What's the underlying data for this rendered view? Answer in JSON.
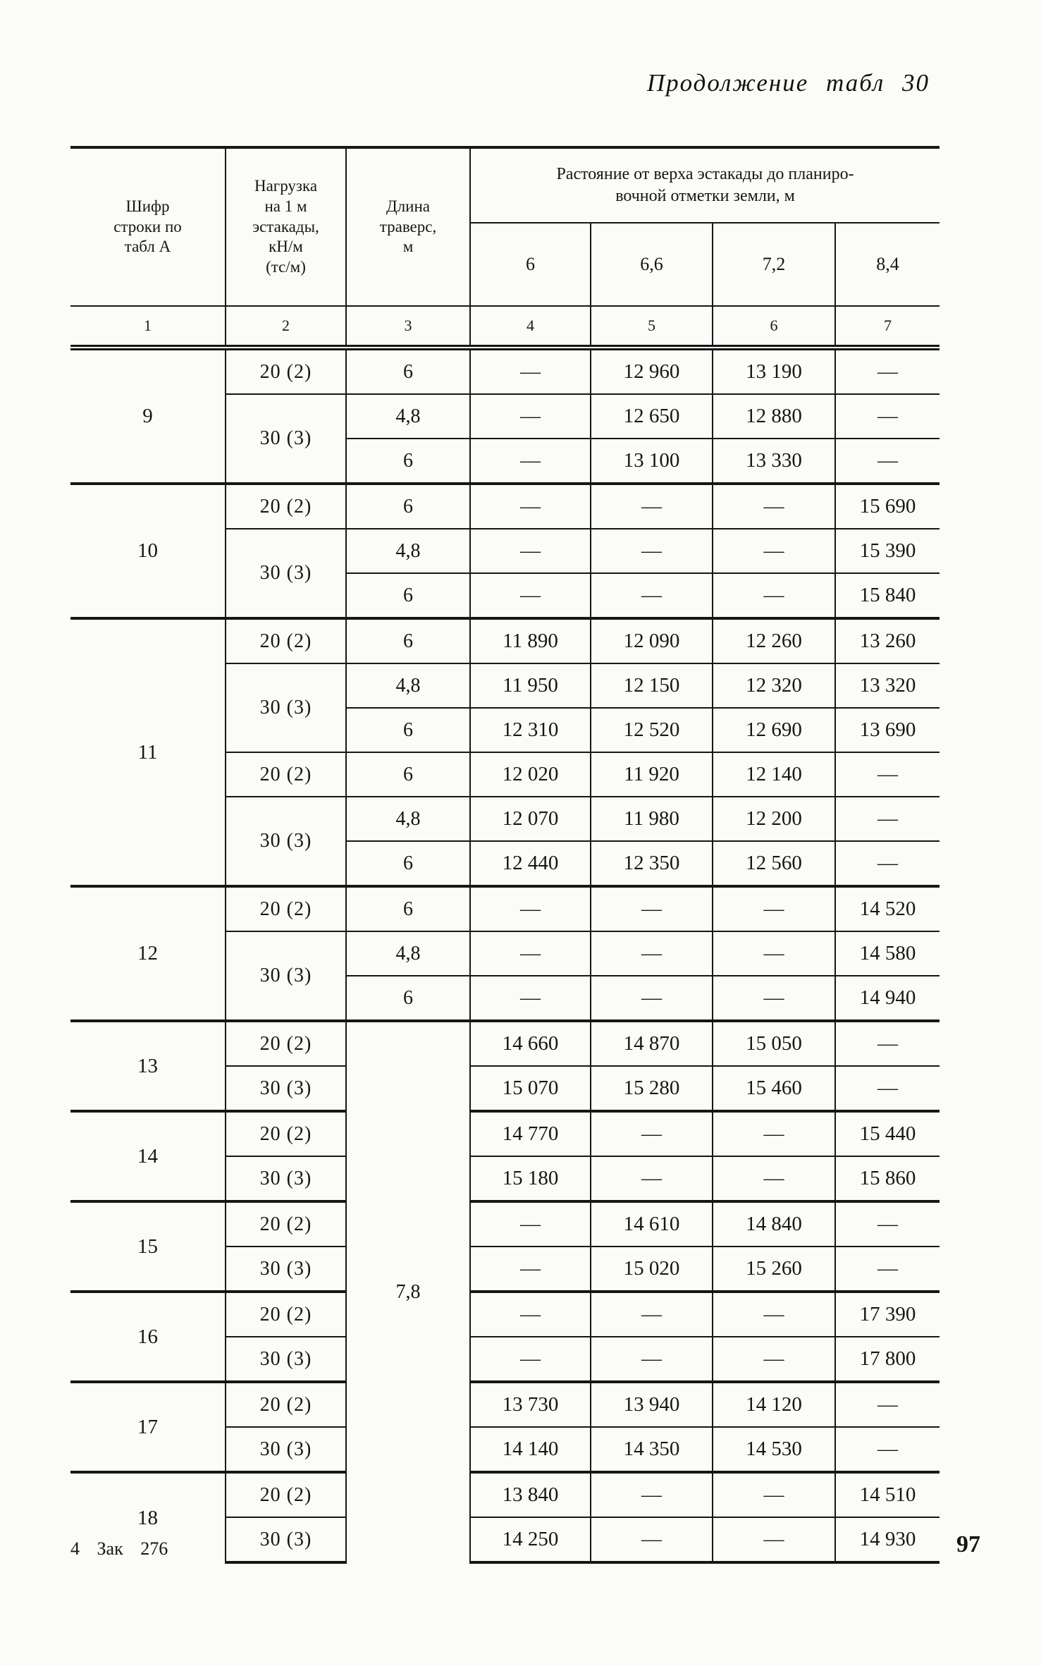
{
  "page": {
    "title": "Продолжение табл 30",
    "footer_left": "4 Зак 276",
    "page_number": "97"
  },
  "table": {
    "header": {
      "col1": "Шифр\nстроки по\nтабл  А",
      "col2": "Нагрузка\nна 1 м\nэстакады,\nкН/м\n(тс/м)",
      "col3": "Длина\nтраверс,\nм",
      "group": "Растояние от верха эстакады до планиро-\nвочной отметки земли, м",
      "subcols": [
        "6",
        "6,6",
        "7,2",
        "8,4"
      ],
      "numbering": [
        "1",
        "2",
        "3",
        "4",
        "5",
        "6",
        "7"
      ]
    },
    "lower_traverse": "7,8",
    "blocks": [
      {
        "code": "9",
        "groups": [
          {
            "load": "20 (2)",
            "rows": [
              {
                "len": "6",
                "values": [
                  "—",
                  "12 960",
                  "13 190",
                  "—"
                ]
              }
            ]
          },
          {
            "load": "30 (3)",
            "rows": [
              {
                "len": "4,8",
                "values": [
                  "—",
                  "12 650",
                  "12 880",
                  "—"
                ]
              },
              {
                "len": "6",
                "values": [
                  "—",
                  "13 100",
                  "13 330",
                  "—"
                ]
              }
            ]
          }
        ]
      },
      {
        "code": "10",
        "groups": [
          {
            "load": "20 (2)",
            "rows": [
              {
                "len": "6",
                "values": [
                  "—",
                  "—",
                  "—",
                  "15 690"
                ]
              }
            ]
          },
          {
            "load": "30 (3)",
            "rows": [
              {
                "len": "4,8",
                "values": [
                  "—",
                  "—",
                  "—",
                  "15 390"
                ]
              },
              {
                "len": "6",
                "values": [
                  "—",
                  "—",
                  "—",
                  "15 840"
                ]
              }
            ]
          }
        ]
      },
      {
        "code": "11",
        "groups": [
          {
            "load": "20 (2)",
            "rows": [
              {
                "len": "6",
                "values": [
                  "11 890",
                  "12 090",
                  "12 260",
                  "13 260"
                ]
              }
            ]
          },
          {
            "load": "30 (3)",
            "rows": [
              {
                "len": "4,8",
                "values": [
                  "11 950",
                  "12 150",
                  "12 320",
                  "13 320"
                ]
              },
              {
                "len": "6",
                "values": [
                  "12 310",
                  "12 520",
                  "12 690",
                  "13 690"
                ]
              }
            ]
          },
          {
            "load": "20 (2)",
            "rows": [
              {
                "len": "6",
                "values": [
                  "12 020",
                  "11 920",
                  "12 140",
                  "—"
                ]
              }
            ]
          },
          {
            "load": "30 (3)",
            "rows": [
              {
                "len": "4,8",
                "values": [
                  "12 070",
                  "11 980",
                  "12 200",
                  "—"
                ]
              },
              {
                "len": "6",
                "values": [
                  "12 440",
                  "12 350",
                  "12 560",
                  "—"
                ]
              }
            ]
          }
        ]
      },
      {
        "code": "12",
        "groups": [
          {
            "load": "20 (2)",
            "rows": [
              {
                "len": "6",
                "values": [
                  "—",
                  "—",
                  "—",
                  "14 520"
                ]
              }
            ]
          },
          {
            "load": "30 (3)",
            "rows": [
              {
                "len": "4,8",
                "values": [
                  "—",
                  "—",
                  "—",
                  "14 580"
                ]
              },
              {
                "len": "6",
                "values": [
                  "—",
                  "—",
                  "—",
                  "14 940"
                ]
              }
            ]
          }
        ]
      },
      {
        "code": "13",
        "lower": true,
        "groups": [
          {
            "load": "20 (2)",
            "rows": [
              {
                "values": [
                  "14 660",
                  "14 870",
                  "15 050",
                  "—"
                ]
              }
            ]
          },
          {
            "load": "30 (3)",
            "rows": [
              {
                "values": [
                  "15 070",
                  "15 280",
                  "15 460",
                  "—"
                ]
              }
            ]
          }
        ]
      },
      {
        "code": "14",
        "lower": true,
        "groups": [
          {
            "load": "20 (2)",
            "rows": [
              {
                "values": [
                  "14 770",
                  "—",
                  "—",
                  "15 440"
                ]
              }
            ]
          },
          {
            "load": "30 (3)",
            "rows": [
              {
                "values": [
                  "15 180",
                  "—",
                  "—",
                  "15 860"
                ]
              }
            ]
          }
        ]
      },
      {
        "code": "15",
        "lower": true,
        "groups": [
          {
            "load": "20 (2)",
            "rows": [
              {
                "values": [
                  "—",
                  "14 610",
                  "14 840",
                  "—"
                ]
              }
            ]
          },
          {
            "load": "30 (3)",
            "rows": [
              {
                "values": [
                  "—",
                  "15 020",
                  "15 260",
                  "—"
                ]
              }
            ]
          }
        ]
      },
      {
        "code": "16",
        "lower": true,
        "groups": [
          {
            "load": "20 (2)",
            "rows": [
              {
                "values": [
                  "—",
                  "—",
                  "—",
                  "17 390"
                ]
              }
            ]
          },
          {
            "load": "30 (3)",
            "rows": [
              {
                "values": [
                  "—",
                  "—",
                  "—",
                  "17 800"
                ]
              }
            ]
          }
        ]
      },
      {
        "code": "17",
        "lower": true,
        "groups": [
          {
            "load": "20 (2)",
            "rows": [
              {
                "values": [
                  "13 730",
                  "13 940",
                  "14 120",
                  "—"
                ]
              }
            ]
          },
          {
            "load": "30 (3)",
            "rows": [
              {
                "values": [
                  "14 140",
                  "14 350",
                  "14 530",
                  "—"
                ]
              }
            ]
          }
        ]
      },
      {
        "code": "18",
        "lower": true,
        "groups": [
          {
            "load": "20 (2)",
            "rows": [
              {
                "values": [
                  "13 840",
                  "—",
                  "—",
                  "14 510"
                ]
              }
            ]
          },
          {
            "load": "30 (3)",
            "rows": [
              {
                "values": [
                  "14 250",
                  "—",
                  "—",
                  "14 930"
                ]
              }
            ]
          }
        ]
      }
    ]
  }
}
